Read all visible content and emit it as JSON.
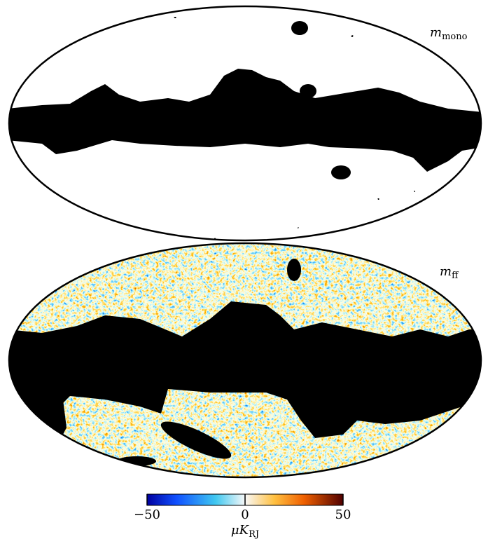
{
  "panels": [
    {
      "symbol": "m",
      "subscript": "mono"
    },
    {
      "symbol": "m",
      "subscript": "ff"
    }
  ],
  "colorbar": {
    "lim": [
      -50,
      50
    ],
    "ticks": [
      {
        "value": -50,
        "label": "−50"
      },
      0,
      50
    ],
    "label_main": "μK",
    "label_sub": "RJ"
  }
}
